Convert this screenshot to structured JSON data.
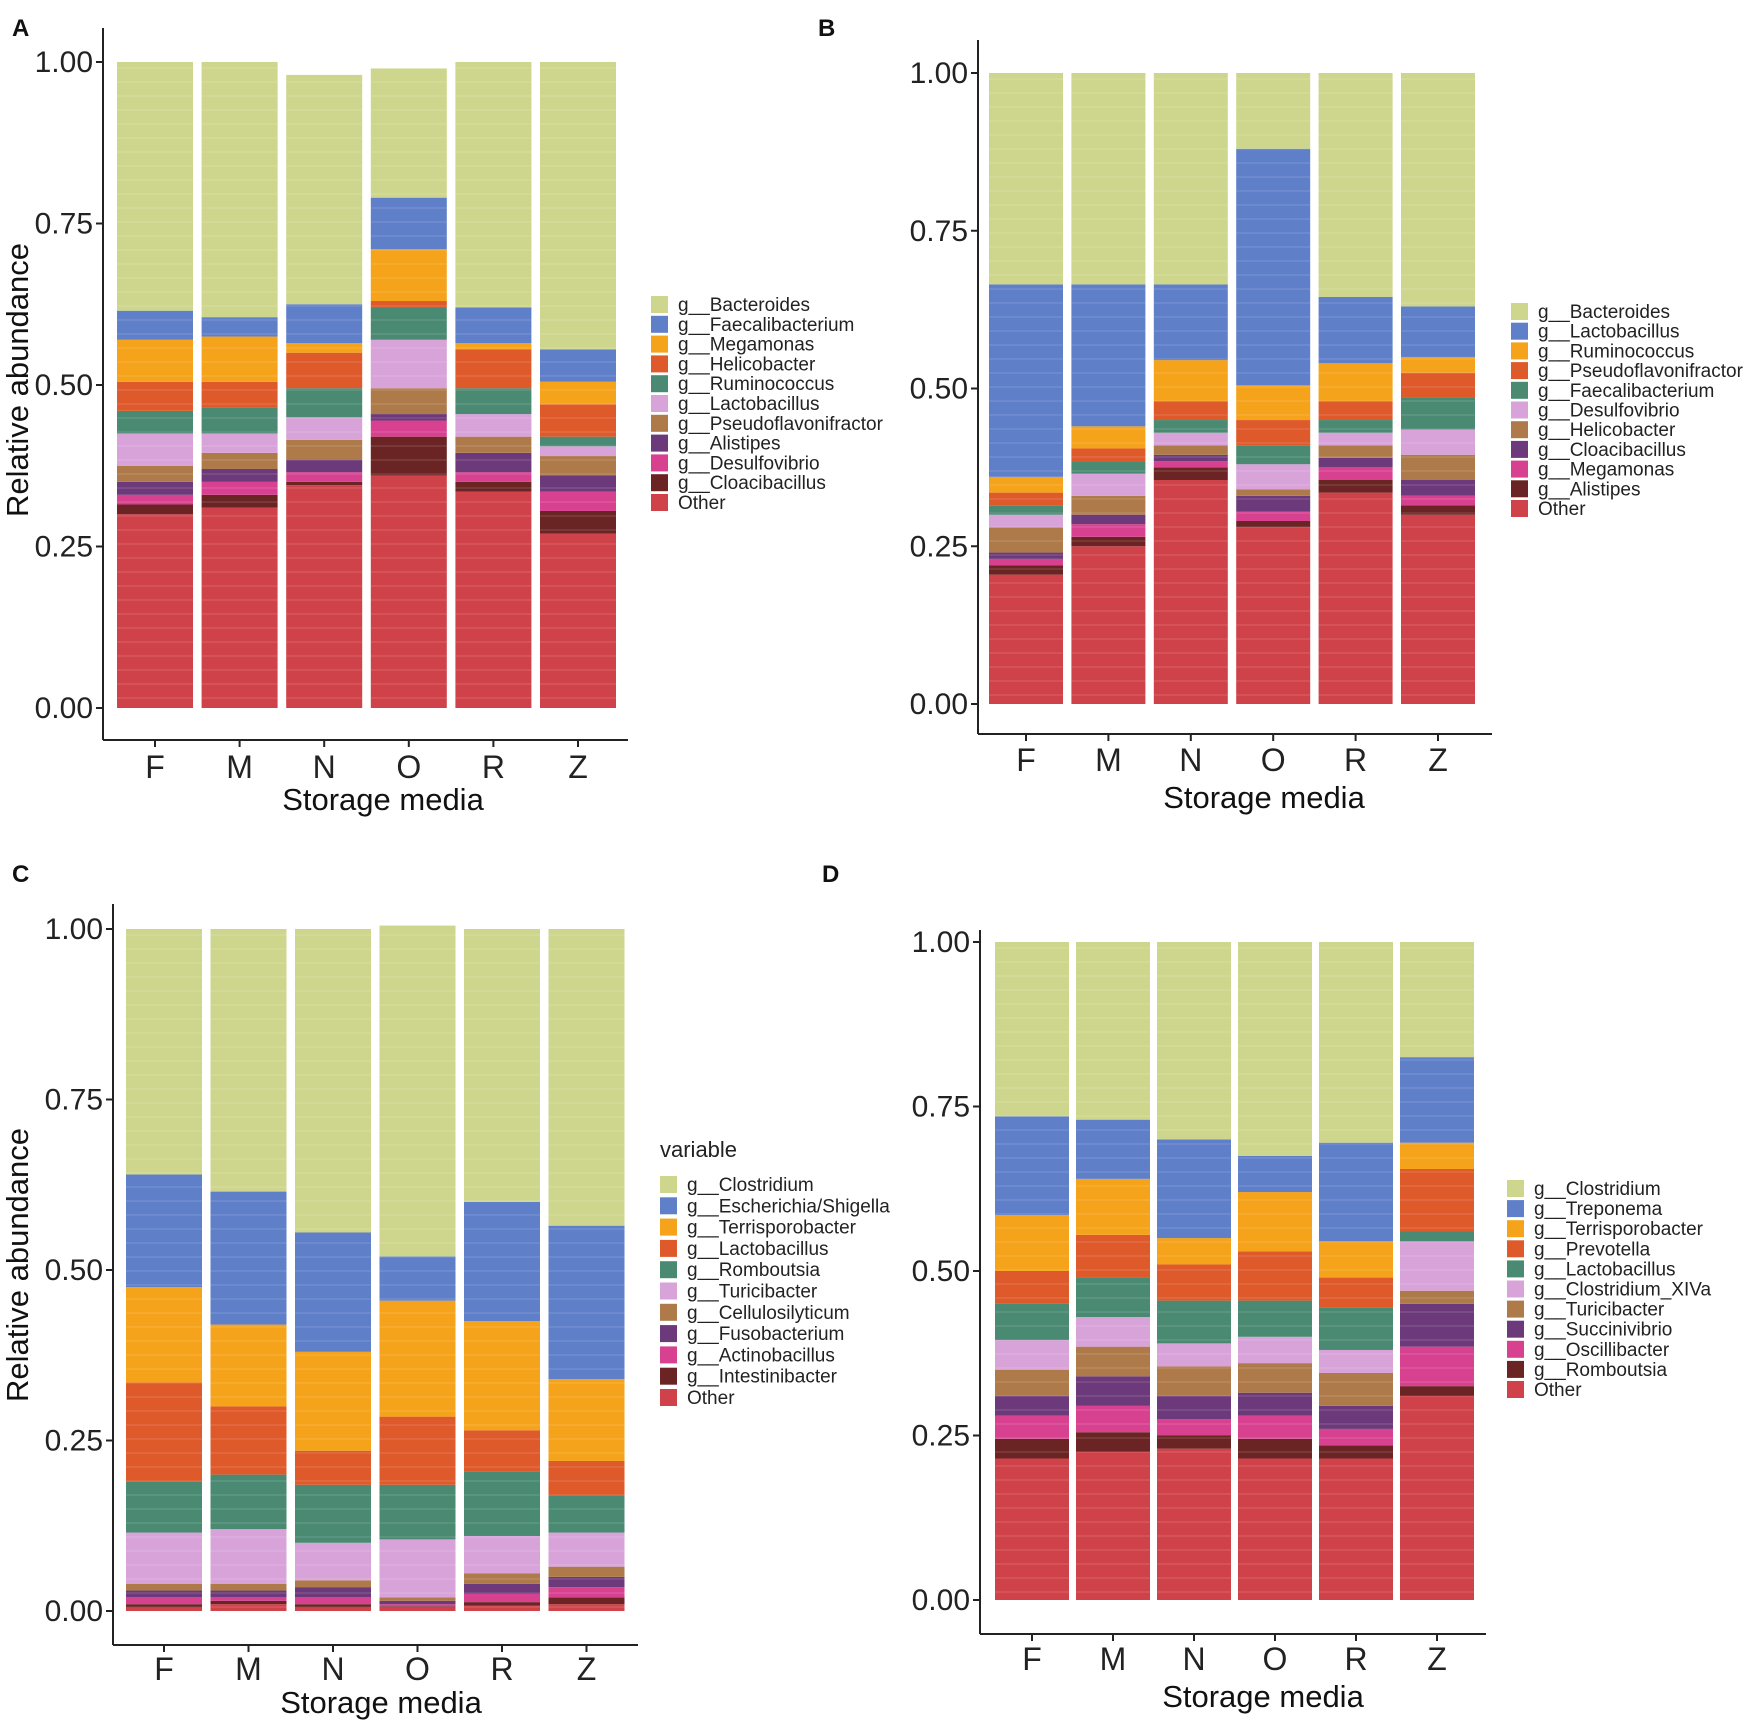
{
  "colors": [
    "#cdd68c",
    "#5f7fc9",
    "#f5a31a",
    "#de5a2b",
    "#4a8a72",
    "#d7a3d8",
    "#ae7a4a",
    "#6c3a7a",
    "#d84190",
    "#6b2424",
    "#cf4249"
  ],
  "chart_data": [
    {
      "panel_label": "A",
      "type": "bar",
      "stacked": true,
      "categories": [
        "F",
        "M",
        "N",
        "O",
        "R",
        "Z"
      ],
      "xlabel": "Storage media",
      "ylabel": "Relative abundance",
      "ylim": [
        0,
        1
      ],
      "yticks": [
        "0.00",
        "0.25",
        "0.50",
        "0.75",
        "1.00"
      ],
      "legend_title": "",
      "series": [
        {
          "name": "g__Bacteroides",
          "values": [
            0.385,
            0.395,
            0.355,
            0.2,
            0.38,
            0.445
          ]
        },
        {
          "name": "g__Faecalibacterium",
          "values": [
            0.045,
            0.03,
            0.06,
            0.08,
            0.055,
            0.05
          ]
        },
        {
          "name": "g__Megamonas",
          "values": [
            0.065,
            0.07,
            0.015,
            0.08,
            0.01,
            0.035
          ]
        },
        {
          "name": "g__Helicobacter",
          "values": [
            0.045,
            0.04,
            0.055,
            0.01,
            0.06,
            0.05
          ]
        },
        {
          "name": "g__Ruminococcus",
          "values": [
            0.035,
            0.04,
            0.045,
            0.05,
            0.04,
            0.015
          ]
        },
        {
          "name": "g__Lactobacillus",
          "values": [
            0.05,
            0.03,
            0.035,
            0.075,
            0.035,
            0.015
          ]
        },
        {
          "name": "g__Pseudoflavonifractor",
          "values": [
            0.025,
            0.025,
            0.03,
            0.04,
            0.025,
            0.03
          ]
        },
        {
          "name": "g__Alistipes",
          "values": [
            0.02,
            0.02,
            0.02,
            0.01,
            0.03,
            0.025
          ]
        },
        {
          "name": "g__Desulfovibrio",
          "values": [
            0.015,
            0.02,
            0.015,
            0.025,
            0.015,
            0.03
          ]
        },
        {
          "name": "g__Cloacibacillus",
          "values": [
            0.015,
            0.02,
            0.005,
            0.06,
            0.015,
            0.035
          ]
        },
        {
          "name": "Other",
          "values": [
            0.3,
            0.31,
            0.345,
            0.36,
            0.335,
            0.27
          ]
        }
      ]
    },
    {
      "panel_label": "B",
      "type": "bar",
      "stacked": true,
      "categories": [
        "F",
        "M",
        "N",
        "O",
        "R",
        "Z"
      ],
      "xlabel": "Storage media",
      "ylabel": "",
      "ylim": [
        0,
        1
      ],
      "yticks": [
        "0.00",
        "0.25",
        "0.50",
        "0.75",
        "1.00"
      ],
      "legend_title": "",
      "series": [
        {
          "name": "g__Bacteroides",
          "values": [
            0.335,
            0.335,
            0.335,
            0.12,
            0.355,
            0.37
          ]
        },
        {
          "name": "g__Lactobacillus",
          "values": [
            0.305,
            0.225,
            0.12,
            0.375,
            0.105,
            0.08
          ]
        },
        {
          "name": "g__Ruminococcus",
          "values": [
            0.025,
            0.035,
            0.065,
            0.055,
            0.06,
            0.025
          ]
        },
        {
          "name": "g__Pseudoflavonifractor",
          "values": [
            0.02,
            0.02,
            0.03,
            0.04,
            0.03,
            0.04
          ]
        },
        {
          "name": "g__Faecalibacterium",
          "values": [
            0.015,
            0.02,
            0.02,
            0.03,
            0.02,
            0.05
          ]
        },
        {
          "name": "g__Desulfovibrio",
          "values": [
            0.02,
            0.035,
            0.02,
            0.04,
            0.02,
            0.04
          ]
        },
        {
          "name": "g__Helicobacter",
          "values": [
            0.04,
            0.03,
            0.015,
            0.01,
            0.02,
            0.04
          ]
        },
        {
          "name": "g__Cloacibacillus",
          "values": [
            0.01,
            0.015,
            0.01,
            0.025,
            0.015,
            0.025
          ]
        },
        {
          "name": "g__Megamonas",
          "values": [
            0.01,
            0.02,
            0.01,
            0.015,
            0.02,
            0.015
          ]
        },
        {
          "name": "g__Alistipes",
          "values": [
            0.015,
            0.015,
            0.02,
            0.01,
            0.02,
            0.015
          ]
        },
        {
          "name": "Other",
          "values": [
            0.205,
            0.25,
            0.355,
            0.28,
            0.335,
            0.3
          ]
        }
      ]
    },
    {
      "panel_label": "C",
      "type": "bar",
      "stacked": true,
      "categories": [
        "F",
        "M",
        "N",
        "O",
        "R",
        "Z"
      ],
      "xlabel": "Storage media",
      "ylabel": "Relative abundance",
      "ylim": [
        0,
        1
      ],
      "yticks": [
        "0.00",
        "0.25",
        "0.50",
        "0.75",
        "1.00"
      ],
      "legend_title": "variable",
      "series": [
        {
          "name": "g__Clostridium",
          "values": [
            0.36,
            0.385,
            0.445,
            0.485,
            0.4,
            0.435
          ]
        },
        {
          "name": "g__Escherichia/Shigella",
          "values": [
            0.165,
            0.195,
            0.175,
            0.065,
            0.175,
            0.225
          ]
        },
        {
          "name": "g__Terrisporobacter",
          "values": [
            0.14,
            0.12,
            0.145,
            0.17,
            0.16,
            0.12
          ]
        },
        {
          "name": "g__Lactobacillus",
          "values": [
            0.145,
            0.1,
            0.05,
            0.1,
            0.06,
            0.05
          ]
        },
        {
          "name": "g__Romboutsia",
          "values": [
            0.075,
            0.08,
            0.085,
            0.08,
            0.095,
            0.055
          ]
        },
        {
          "name": "g__Turicibacter",
          "values": [
            0.075,
            0.08,
            0.055,
            0.085,
            0.055,
            0.05
          ]
        },
        {
          "name": "g__Cellulosilyticum",
          "values": [
            0.01,
            0.01,
            0.01,
            0.005,
            0.015,
            0.015
          ]
        },
        {
          "name": "g__Fusobacterium",
          "values": [
            0.01,
            0.01,
            0.015,
            0.005,
            0.015,
            0.015
          ]
        },
        {
          "name": "g__Actinobacillus",
          "values": [
            0.01,
            0.005,
            0.01,
            0.003,
            0.012,
            0.015
          ]
        },
        {
          "name": "g__Intestinibacter",
          "values": [
            0.005,
            0.005,
            0.005,
            0.002,
            0.005,
            0.01
          ]
        },
        {
          "name": "Other",
          "values": [
            0.005,
            0.01,
            0.005,
            0.005,
            0.008,
            0.01
          ]
        }
      ]
    },
    {
      "panel_label": "D",
      "type": "bar",
      "stacked": true,
      "categories": [
        "F",
        "M",
        "N",
        "O",
        "R",
        "Z"
      ],
      "xlabel": "Storage media",
      "ylabel": "",
      "ylim": [
        0,
        1
      ],
      "yticks": [
        "0.00",
        "0.25",
        "0.50",
        "0.75",
        "1.00"
      ],
      "legend_title": "",
      "series": [
        {
          "name": "g__Clostridium",
          "values": [
            0.265,
            0.27,
            0.3,
            0.325,
            0.305,
            0.175
          ]
        },
        {
          "name": "g__Treponema",
          "values": [
            0.15,
            0.09,
            0.15,
            0.055,
            0.15,
            0.13
          ]
        },
        {
          "name": "g__Terrisporobacter",
          "values": [
            0.085,
            0.085,
            0.04,
            0.09,
            0.055,
            0.04
          ]
        },
        {
          "name": "g__Prevotella",
          "values": [
            0.05,
            0.065,
            0.055,
            0.075,
            0.045,
            0.095
          ]
        },
        {
          "name": "g__Lactobacillus",
          "values": [
            0.055,
            0.06,
            0.065,
            0.055,
            0.065,
            0.015
          ]
        },
        {
          "name": "g__Clostridium_XIVa",
          "values": [
            0.045,
            0.045,
            0.035,
            0.04,
            0.035,
            0.075
          ]
        },
        {
          "name": "g__Turicibacter",
          "values": [
            0.04,
            0.045,
            0.045,
            0.045,
            0.05,
            0.02
          ]
        },
        {
          "name": "g__Succinivibrio",
          "values": [
            0.03,
            0.045,
            0.035,
            0.035,
            0.035,
            0.065
          ]
        },
        {
          "name": "g__Oscillibacter",
          "values": [
            0.035,
            0.04,
            0.025,
            0.035,
            0.025,
            0.06
          ]
        },
        {
          "name": "g__Romboutsia",
          "values": [
            0.03,
            0.03,
            0.02,
            0.03,
            0.02,
            0.015
          ]
        },
        {
          "name": "Other",
          "values": [
            0.215,
            0.225,
            0.23,
            0.215,
            0.215,
            0.31
          ]
        }
      ]
    }
  ]
}
